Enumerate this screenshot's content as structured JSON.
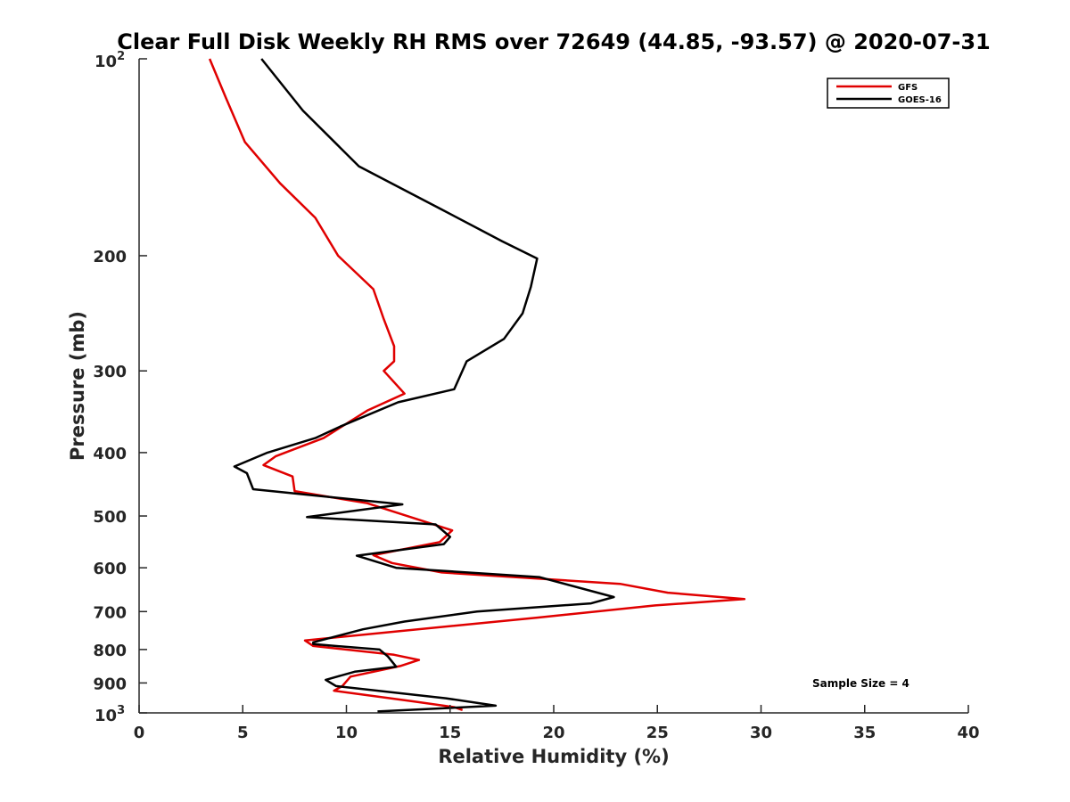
{
  "chart_data": {
    "type": "line",
    "title": "Clear Full Disk Weekly RH RMS over 72649 (44.85, -93.57) @ 2020-07-31",
    "xlabel": "Relative Humidity (%)",
    "ylabel": "Pressure (mb)",
    "xlim": [
      0,
      40
    ],
    "ylim": [
      1000,
      100
    ],
    "y_scale": "log",
    "y_reversed": true,
    "x_ticks": [
      "0",
      "5",
      "10",
      "15",
      "20",
      "25",
      "30",
      "35",
      "40"
    ],
    "y_ticks": [
      {
        "value": 100,
        "label": "10",
        "sup": "2"
      },
      {
        "value": 200,
        "label": "200",
        "sup": ""
      },
      {
        "value": 300,
        "label": "300",
        "sup": ""
      },
      {
        "value": 400,
        "label": "400",
        "sup": ""
      },
      {
        "value": 500,
        "label": "500",
        "sup": ""
      },
      {
        "value": 600,
        "label": "600",
        "sup": ""
      },
      {
        "value": 700,
        "label": "700",
        "sup": ""
      },
      {
        "value": 800,
        "label": "800",
        "sup": ""
      },
      {
        "value": 900,
        "label": "900",
        "sup": ""
      },
      {
        "value": 1000,
        "label": "10",
        "sup": "3"
      }
    ],
    "grid": false,
    "legend": "top-right",
    "series": [
      {
        "name": "GFS",
        "color": "#e00000",
        "points": [
          [
            3.4,
            100
          ],
          [
            4.2,
            115
          ],
          [
            5.1,
            134
          ],
          [
            6.8,
            155
          ],
          [
            8.5,
            175
          ],
          [
            9.6,
            200
          ],
          [
            11.3,
            225
          ],
          [
            11.8,
            250
          ],
          [
            12.3,
            275
          ],
          [
            12.3,
            290
          ],
          [
            11.8,
            300
          ],
          [
            12.8,
            325
          ],
          [
            11.0,
            345
          ],
          [
            8.9,
            380
          ],
          [
            6.6,
            405
          ],
          [
            6.0,
            418
          ],
          [
            7.4,
            435
          ],
          [
            7.5,
            458
          ],
          [
            11.0,
            478
          ],
          [
            15.1,
            526
          ],
          [
            14.5,
            548
          ],
          [
            11.3,
            574
          ],
          [
            12.2,
            590
          ],
          [
            14.6,
            610
          ],
          [
            23.2,
            635
          ],
          [
            25.5,
            655
          ],
          [
            29.2,
            670
          ],
          [
            24.9,
            685
          ],
          [
            19.2,
            715
          ],
          [
            8.0,
            775
          ],
          [
            8.4,
            790
          ],
          [
            12.3,
            815
          ],
          [
            13.5,
            830
          ],
          [
            12.6,
            848
          ],
          [
            10.2,
            880
          ],
          [
            9.8,
            910
          ],
          [
            9.4,
            925
          ],
          [
            13.2,
            960
          ],
          [
            15.2,
            980
          ],
          [
            15.6,
            990
          ]
        ]
      },
      {
        "name": "GOES-16",
        "color": "#000000",
        "points": [
          [
            5.9,
            100
          ],
          [
            7.9,
            120
          ],
          [
            10.6,
            146
          ],
          [
            14.6,
            170
          ],
          [
            17.5,
            190
          ],
          [
            19.2,
            202
          ],
          [
            18.9,
            223
          ],
          [
            18.5,
            245
          ],
          [
            17.6,
            268
          ],
          [
            15.8,
            290
          ],
          [
            15.2,
            320
          ],
          [
            12.5,
            335
          ],
          [
            9.7,
            365
          ],
          [
            8.5,
            380
          ],
          [
            6.2,
            400
          ],
          [
            4.6,
            420
          ],
          [
            5.2,
            430
          ],
          [
            5.5,
            455
          ],
          [
            12.7,
            480
          ],
          [
            8.1,
            502
          ],
          [
            14.3,
            515
          ],
          [
            15.0,
            538
          ],
          [
            14.7,
            552
          ],
          [
            10.5,
            575
          ],
          [
            12.4,
            600
          ],
          [
            19.3,
            620
          ],
          [
            22.9,
            665
          ],
          [
            21.8,
            680
          ],
          [
            16.3,
            700
          ],
          [
            12.8,
            725
          ],
          [
            10.8,
            745
          ],
          [
            8.4,
            780
          ],
          [
            8.4,
            785
          ],
          [
            11.6,
            800
          ],
          [
            12.0,
            820
          ],
          [
            12.4,
            850
          ],
          [
            10.4,
            865
          ],
          [
            9.0,
            890
          ],
          [
            9.5,
            910
          ],
          [
            14.8,
            950
          ],
          [
            17.2,
            975
          ],
          [
            11.5,
            995
          ]
        ]
      }
    ],
    "annotations": [
      "Sample Size = 4"
    ]
  }
}
